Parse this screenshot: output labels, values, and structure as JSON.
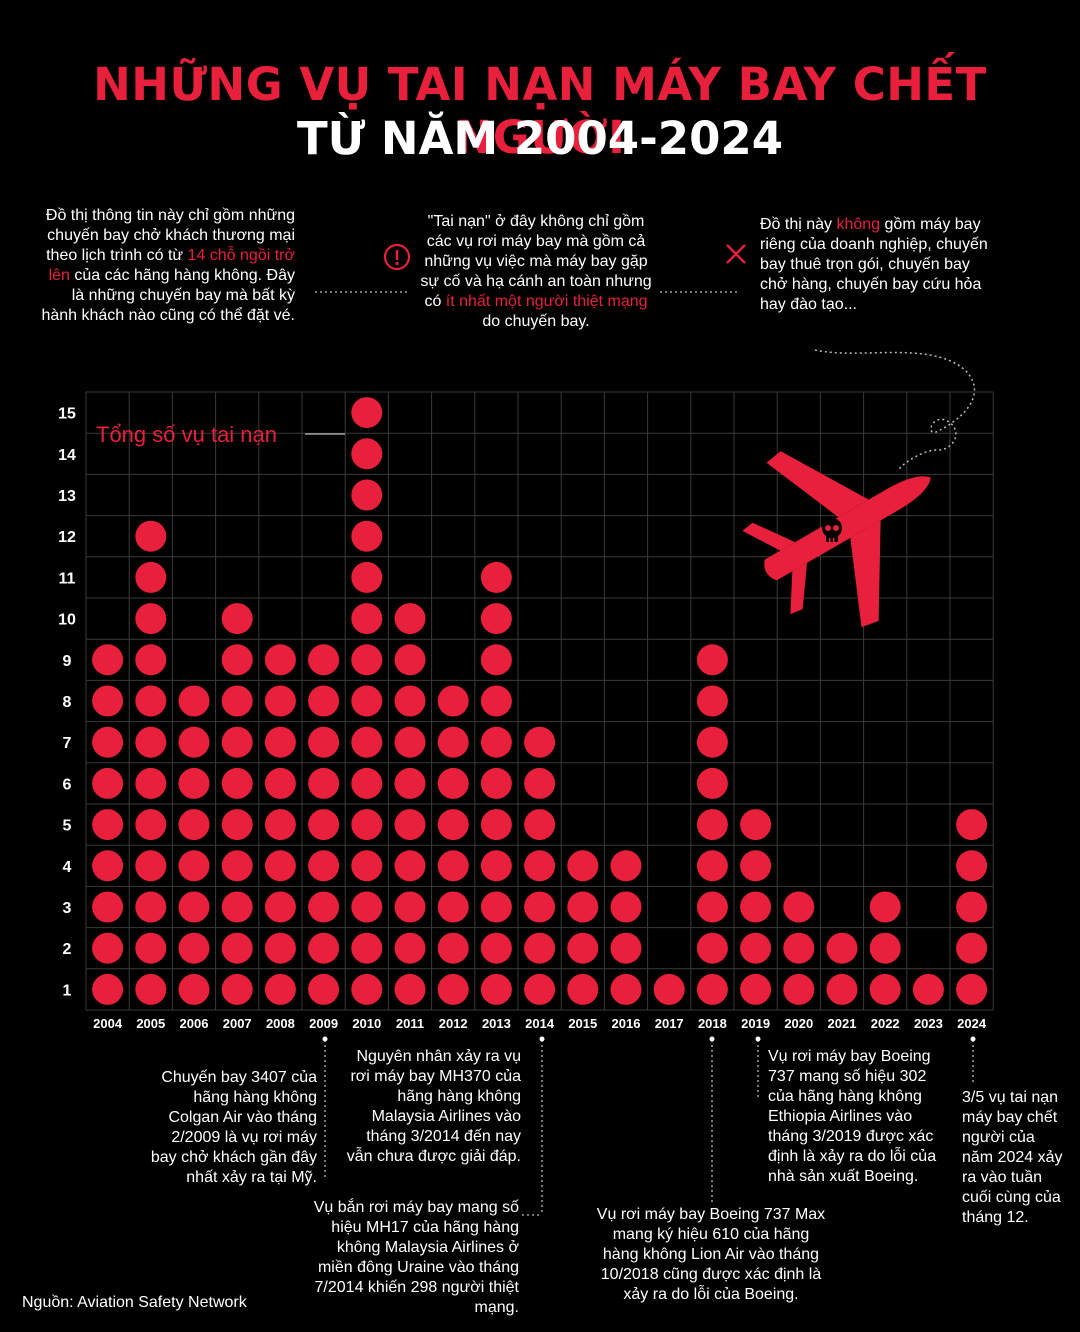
{
  "title": {
    "line1": "NHỮNG VỤ TAI NẠN MÁY BAY CHẾT NGƯỜI",
    "line2": "TỪ NĂM 2004-2024"
  },
  "intro_notes": {
    "note1_part1": "Đồ thị thông tin này chỉ gồm những chuyến bay chở khách thương mại theo lịch trình có từ ",
    "note1_red": "14 chỗ ngồi trở lên",
    "note1_part2": " của các hãng hàng không. Đây là những chuyến bay mà bất kỳ hành khách nào cũng có thể đặt vé.",
    "note2_part1": "\"Tai nạn\" ở đây không chỉ gồm các vụ rơi máy bay mà gồm cả những vụ việc mà máy bay gặp sự cố và hạ cánh an toàn nhưng có ",
    "note2_red": "ít nhất một người thiệt mạng",
    "note2_part2": " do chuyến bay.",
    "note3_part1": "Đồ thị này ",
    "note3_red": "không",
    "note3_part2": " gồm máy bay riêng của doanh nghiệp, chuyến bay thuê trọn gói, chuyến bay chở hàng, chuyến bay cứu hỏa hay đào tạo..."
  },
  "icons": {
    "warning": "exclamation-circle-icon",
    "exclude": "x-mark-icon",
    "plane": "crashed-plane-skull-icon"
  },
  "colors": {
    "accent": "#e8203c",
    "background": "#000000",
    "grid": "#3a3a3a"
  },
  "chart_data": {
    "type": "dot-column",
    "legend_label": "Tổng số vụ tai nạn",
    "categories": [
      "2004",
      "2005",
      "2006",
      "2007",
      "2008",
      "2009",
      "2010",
      "2011",
      "2012",
      "2013",
      "2014",
      "2015",
      "2016",
      "2017",
      "2018",
      "2019",
      "2020",
      "2021",
      "2022",
      "2023",
      "2024"
    ],
    "values": [
      9,
      12,
      8,
      10,
      9,
      9,
      15,
      10,
      8,
      11,
      7,
      4,
      4,
      1,
      9,
      5,
      3,
      2,
      3,
      1,
      5
    ],
    "ylim": [
      1,
      15
    ],
    "y_ticks": [
      "1",
      "2",
      "3",
      "4",
      "5",
      "6",
      "7",
      "8",
      "9",
      "10",
      "11",
      "12",
      "13",
      "14",
      "15"
    ]
  },
  "annotations": {
    "a2009": "Chuyến bay 3407 của hãng hàng không Colgan Air vào tháng 2/2009 là vụ rơi máy bay chở khách gần đây nhất xảy ra tại Mỹ.",
    "a2014_mh370": "Nguyên nhân xảy ra vụ rơi máy bay MH370 của hãng hàng không Malaysia Airlines vào tháng 3/2014 đến nay vẫn chưa được giải đáp.",
    "a2014_mh17": "Vụ bắn rơi máy bay mang số hiệu MH17 của hãng hàng không Malaysia Airlines ở miền đông Uraine vào tháng 7/2014 khiến 298 người thiệt mạng.",
    "a2018": "Vụ rơi máy bay Boeing 737 Max mang ký hiệu 610 của hãng hàng không Lion Air vào tháng 10/2018 cũng được xác định là xảy ra do lỗi của Boeing.",
    "a2019": "Vụ rơi máy bay Boeing 737 mang số hiệu 302 của hãng hàng không Ethiopia Airlines vào tháng 3/2019 được xác định là xảy ra do lỗi của nhà sản xuất Boeing.",
    "a2024": "3/5 vụ tai nạn máy bay chết người của năm 2024 xảy ra vào tuần cuối cùng của tháng 12."
  },
  "source": "Nguồn: Aviation Safety Network"
}
